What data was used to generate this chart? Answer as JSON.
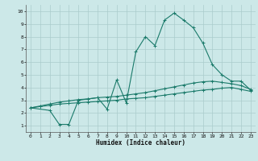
{
  "xlabel": "Humidex (Indice chaleur)",
  "bg_color": "#cce8e8",
  "grid_color": "#aacccc",
  "line_color": "#1a7a6a",
  "xlim": [
    -0.5,
    23.5
  ],
  "ylim": [
    0.5,
    10.5
  ],
  "xticks": [
    0,
    1,
    2,
    3,
    4,
    5,
    6,
    7,
    8,
    9,
    10,
    11,
    12,
    13,
    14,
    15,
    16,
    17,
    18,
    19,
    20,
    21,
    22,
    23
  ],
  "yticks": [
    1,
    2,
    3,
    4,
    5,
    6,
    7,
    8,
    9,
    10
  ],
  "line1_x": [
    0,
    1,
    2,
    3,
    4,
    5,
    6,
    7,
    8,
    9,
    10,
    11,
    12,
    13,
    14,
    15,
    16,
    17,
    18,
    19,
    20,
    21,
    22,
    23
  ],
  "line1_y": [
    2.4,
    2.5,
    2.6,
    2.7,
    2.75,
    2.8,
    2.85,
    2.9,
    2.95,
    3.0,
    3.1,
    3.15,
    3.2,
    3.3,
    3.4,
    3.5,
    3.6,
    3.7,
    3.8,
    3.85,
    3.95,
    4.0,
    3.85,
    3.7
  ],
  "line2_x": [
    0,
    1,
    2,
    3,
    4,
    5,
    6,
    7,
    8,
    9,
    10,
    11,
    12,
    13,
    14,
    15,
    16,
    17,
    18,
    19,
    20,
    21,
    22,
    23
  ],
  "line2_y": [
    2.4,
    2.55,
    2.7,
    2.85,
    2.95,
    3.05,
    3.1,
    3.2,
    3.25,
    3.3,
    3.4,
    3.5,
    3.6,
    3.75,
    3.9,
    4.05,
    4.2,
    4.35,
    4.45,
    4.5,
    4.4,
    4.3,
    4.15,
    3.85
  ],
  "line3_x": [
    0,
    2,
    3,
    4,
    5,
    6,
    7,
    8,
    9,
    10,
    11,
    12,
    13,
    14,
    15,
    16,
    17,
    18,
    19,
    20,
    21,
    22,
    23
  ],
  "line3_y": [
    2.4,
    2.2,
    1.1,
    1.1,
    3.0,
    3.1,
    3.2,
    2.3,
    4.6,
    2.8,
    6.8,
    8.0,
    7.3,
    9.3,
    9.85,
    9.3,
    8.7,
    7.5,
    5.8,
    5.0,
    4.5,
    4.5,
    3.8
  ]
}
